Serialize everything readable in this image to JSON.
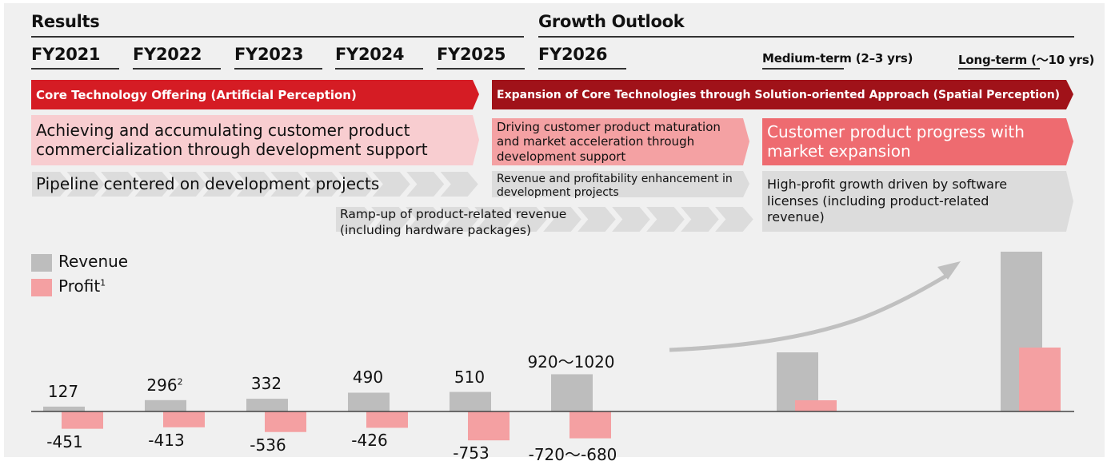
{
  "headers": {
    "results": "Results",
    "growth_outlook": "Growth Outlook"
  },
  "periods": [
    {
      "label": "FY2021"
    },
    {
      "label": "FY2022"
    },
    {
      "label": "FY2023"
    },
    {
      "label": "FY2024"
    },
    {
      "label": "FY2025"
    },
    {
      "label": "FY2026"
    },
    {
      "label": "Medium-term (2–3 yrs)"
    },
    {
      "label": "Long-term (～10 yrs)"
    }
  ],
  "banners": {
    "core": "Core Technology Offering (Artificial Perception)",
    "expansion": "Expansion of Core Technologies through Solution-oriented Approach (Spatial Perception)"
  },
  "rows": {
    "row1_left": "Achieving and accumulating customer product commercialization through development support",
    "row1_mid": "Driving customer product maturation and market acceleration through development support",
    "row1_right": "Customer product progress with market expansion",
    "row2_left": "Pipeline centered on development projects",
    "row2_mid": "Revenue and profitability enhancement in development projects",
    "row2_right": "High-profit growth driven by software licenses (including product-related revenue)",
    "row3": "Ramp-up of product-related revenue (including hardware packages)"
  },
  "legend": {
    "revenue": "Revenue",
    "profit": "Profit",
    "profit_footnote": "1"
  },
  "colors": {
    "core_banner": "#d51c24",
    "expansion_banner": "#a01219",
    "light_pink": "#f8cdd0",
    "mid_pink": "#f4a1a3",
    "strong_pink": "#ee6b70",
    "chevron_gray": "#dcdcdc",
    "revenue_bar": "#bdbdbd",
    "profit_bar": "#f4a0a2",
    "trend_arrow": "#c0c0c0"
  },
  "chart_data": {
    "type": "bar",
    "categories": [
      "FY2021",
      "FY2022",
      "FY2023",
      "FY2024",
      "FY2025",
      "FY2026",
      "Medium-term (2–3 yrs)",
      "Long-term (～10 yrs)"
    ],
    "series": [
      {
        "name": "Revenue",
        "values": [
          127,
          296,
          332,
          490,
          510,
          970,
          null,
          null
        ],
        "labels": [
          "127",
          "296",
          "332",
          "490",
          "510",
          "920～1020",
          "",
          ""
        ],
        "footnotes": [
          "",
          "2",
          "",
          "",
          "",
          "",
          "",
          ""
        ]
      },
      {
        "name": "Profit",
        "values": [
          -451,
          -413,
          -536,
          -426,
          -753,
          -700,
          null,
          null
        ],
        "labels": [
          "-451",
          "-413",
          "-536",
          "-426",
          "-753",
          "-720～-680",
          "",
          ""
        ]
      }
    ],
    "qualitative_bars": {
      "note": "Medium-term and long-term bars are illustrative (unlabeled)",
      "medium_term": {
        "revenue_relative": 0.37,
        "profit_relative": 0.07
      },
      "long_term": {
        "revenue_relative": 1.0,
        "profit_relative": 0.4
      }
    },
    "annotations": [
      "upward growth trend arrow"
    ],
    "legend_position": "top-left",
    "grid": false
  }
}
